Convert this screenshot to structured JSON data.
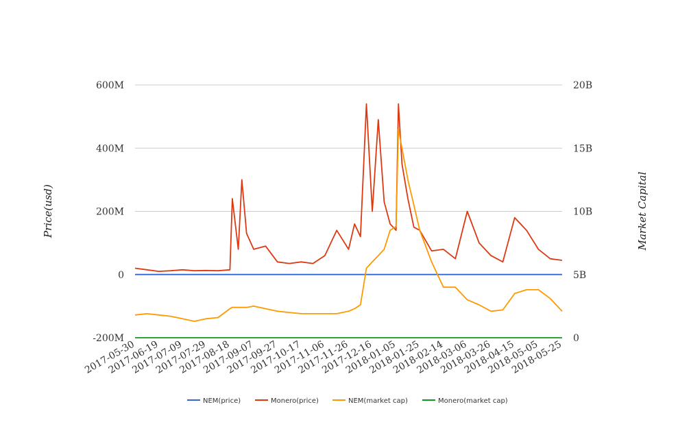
{
  "chart_data": {
    "type": "line",
    "ylabel_left": "Price(usd)",
    "ylabel_right": "Market Capital",
    "y_left_ticks": [
      "600M",
      "400M",
      "200M",
      "0",
      "-200M"
    ],
    "y_right_ticks": [
      "20B",
      "15B",
      "10B",
      "5B",
      "0"
    ],
    "ylim_left": [
      -200000000,
      600000000
    ],
    "ylim_right": [
      0,
      20000000000
    ],
    "grid": true,
    "legend_position": "bottom",
    "x_tick_labels": [
      "2017-05-30",
      "2017-06-19",
      "2017-07-09",
      "2017-07-29",
      "2017-08-18",
      "2017-09-07",
      "2017-09-27",
      "2017-10-17",
      "2017-11-06",
      "2017-11-26",
      "2017-12-16",
      "2018-01-05",
      "2018-01-25",
      "2018-02-14",
      "2018-03-06",
      "2018-03-26",
      "2018-04-15",
      "2018-05-05",
      "2018-05-25"
    ],
    "x": [
      "2017-05-30",
      "2017-06-09",
      "2017-06-19",
      "2017-06-29",
      "2017-07-09",
      "2017-07-19",
      "2017-07-29",
      "2017-08-08",
      "2017-08-18",
      "2017-08-20",
      "2017-08-25",
      "2017-08-28",
      "2017-09-01",
      "2017-09-07",
      "2017-09-17",
      "2017-09-27",
      "2017-10-07",
      "2017-10-17",
      "2017-10-27",
      "2017-11-06",
      "2017-11-16",
      "2017-11-26",
      "2017-12-01",
      "2017-12-06",
      "2017-12-11",
      "2017-12-16",
      "2017-12-21",
      "2017-12-26",
      "2017-12-31",
      "2018-01-05",
      "2018-01-07",
      "2018-01-10",
      "2018-01-15",
      "2018-01-20",
      "2018-01-25",
      "2018-02-04",
      "2018-02-14",
      "2018-02-24",
      "2018-03-06",
      "2018-03-16",
      "2018-03-26",
      "2018-04-05",
      "2018-04-15",
      "2018-04-25",
      "2018-05-05",
      "2018-05-15",
      "2018-05-25"
    ],
    "series": [
      {
        "name": "NEM(price)",
        "axis": "left",
        "color": "#3366cc",
        "values": [
          0.2,
          0.2,
          0.2,
          0.2,
          0.2,
          0.2,
          0.2,
          0.2,
          0.2,
          0.2,
          0.3,
          0.3,
          0.3,
          0.3,
          0.2,
          0.2,
          0.2,
          0.2,
          0.2,
          0.2,
          0.2,
          0.3,
          0.3,
          0.4,
          0.5,
          0.6,
          0.8,
          0.9,
          1.0,
          1.6,
          1.8,
          1.4,
          1.2,
          1.0,
          0.9,
          0.6,
          0.5,
          0.4,
          0.35,
          0.3,
          0.25,
          0.25,
          0.35,
          0.4,
          0.35,
          0.3,
          0.25
        ]
      },
      {
        "name": "Monero(price)",
        "axis": "left",
        "color": "#dc3912",
        "values": [
          20000000,
          15000000,
          10000000,
          12000000,
          15000000,
          12000000,
          13000000,
          12000000,
          15000000,
          240000000,
          80000000,
          300000000,
          130000000,
          80000000,
          90000000,
          40000000,
          35000000,
          40000000,
          35000000,
          60000000,
          140000000,
          80000000,
          160000000,
          120000000,
          540000000,
          200000000,
          490000000,
          230000000,
          160000000,
          140000000,
          540000000,
          350000000,
          240000000,
          150000000,
          140000000,
          75000000,
          80000000,
          50000000,
          200000000,
          100000000,
          60000000,
          40000000,
          180000000,
          140000000,
          80000000,
          50000000,
          45000000
        ]
      },
      {
        "name": "NEM(market cap)",
        "axis": "right",
        "color": "#ff9900",
        "values": [
          1800000000,
          1900000000,
          1800000000,
          1700000000,
          1500000000,
          1300000000,
          1500000000,
          1600000000,
          2300000000,
          2400000000,
          2400000000,
          2400000000,
          2400000000,
          2500000000,
          2300000000,
          2100000000,
          2000000000,
          1900000000,
          1900000000,
          1900000000,
          1900000000,
          2100000000,
          2300000000,
          2600000000,
          5500000000,
          6000000000,
          6500000000,
          7000000000,
          8500000000,
          8800000000,
          16500000000,
          15000000000,
          12500000000,
          10500000000,
          8500000000,
          6000000000,
          4000000000,
          4000000000,
          3000000000,
          2600000000,
          2100000000,
          2200000000,
          3500000000,
          3800000000,
          3800000000,
          3100000000,
          2100000000
        ]
      },
      {
        "name": "Monero(market cap)",
        "axis": "right",
        "color": "#109618",
        "values": [
          0.3,
          0.3,
          0.3,
          0.3,
          0.3,
          0.3,
          0.3,
          0.3,
          0.4,
          0.4,
          0.5,
          0.5,
          0.5,
          0.5,
          0.5,
          0.5,
          0.5,
          0.5,
          0.5,
          0.6,
          0.6,
          0.8,
          0.8,
          0.9,
          1.0,
          1.0,
          1.2,
          1.3,
          1.4,
          1.8,
          2.0,
          1.8,
          1.6,
          1.4,
          1.2,
          0.8,
          0.7,
          0.6,
          0.6,
          0.5,
          0.5,
          0.5,
          0.6,
          0.7,
          0.6,
          0.5,
          0.5
        ]
      }
    ]
  }
}
